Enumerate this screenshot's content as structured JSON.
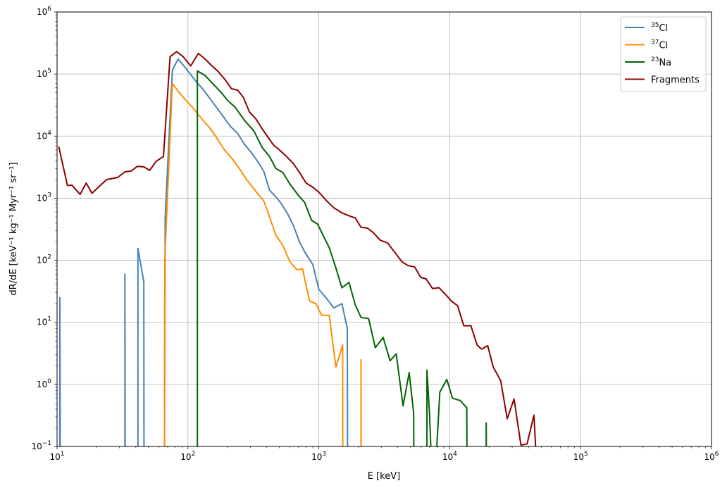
{
  "chart_data": {
    "type": "line",
    "xscale": "log",
    "yscale": "log",
    "xlim": [
      10,
      1000000
    ],
    "ylim": [
      0.1,
      1000000
    ],
    "grid": true,
    "legend_position": "top-right",
    "xlabel": "E [keV]",
    "ylabel": "dR/dE [keV⁻¹ kg⁻¹ Myr⁻¹ sr⁻¹]",
    "x_tick_labels": [
      {
        "base": "10",
        "exp": "1"
      },
      {
        "base": "10",
        "exp": "2"
      },
      {
        "base": "10",
        "exp": "3"
      },
      {
        "base": "10",
        "exp": "4"
      },
      {
        "base": "10",
        "exp": "5"
      },
      {
        "base": "10",
        "exp": "6"
      }
    ],
    "y_tick_labels": [
      {
        "base": "10",
        "exp": "−1"
      },
      {
        "base": "10",
        "exp": "0"
      },
      {
        "base": "10",
        "exp": "1"
      },
      {
        "base": "10",
        "exp": "2"
      },
      {
        "base": "10",
        "exp": "3"
      },
      {
        "base": "10",
        "exp": "4"
      },
      {
        "base": "10",
        "exp": "5"
      },
      {
        "base": "10",
        "exp": "6"
      }
    ],
    "series": [
      {
        "name": "³⁵Cl",
        "legend_sup": "35",
        "legend_base": "Cl",
        "color": "#4682b4",
        "points": [
          [
            10.5,
            0.01
          ],
          [
            10.5,
            25
          ],
          [
            10.6,
            0.01
          ],
          [
            33,
            0.01
          ],
          [
            33,
            60
          ],
          [
            33.2,
            0.01
          ],
          [
            41.5,
            0.01
          ],
          [
            41.5,
            155
          ],
          [
            46,
            45
          ],
          [
            46.2,
            0.01
          ],
          [
            66,
            0.01
          ],
          [
            67,
            500
          ],
          [
            76,
            115000
          ],
          [
            84,
            175000
          ],
          [
            96,
            125000
          ],
          [
            112,
            82000
          ],
          [
            132,
            55000
          ],
          [
            158,
            33000
          ],
          [
            185,
            21000
          ],
          [
            210,
            14500
          ],
          [
            240,
            11000
          ],
          [
            270,
            7400
          ],
          [
            310,
            5200
          ],
          [
            350,
            3600
          ],
          [
            380,
            2700
          ],
          [
            420,
            1350
          ],
          [
            470,
            1050
          ],
          [
            520,
            800
          ],
          [
            580,
            550
          ],
          [
            640,
            360
          ],
          [
            710,
            200
          ],
          [
            790,
            130
          ],
          [
            900,
            85
          ],
          [
            1000,
            34
          ],
          [
            1150,
            24
          ],
          [
            1300,
            17
          ],
          [
            1500,
            20
          ],
          [
            1650,
            8
          ],
          [
            1660,
            0.01
          ]
        ]
      },
      {
        "name": "³⁷Cl",
        "legend_sup": "37",
        "legend_base": "Cl",
        "color": "#ff8c00",
        "points": [
          [
            66,
            0.01
          ],
          [
            66.5,
            100
          ],
          [
            76,
            70000
          ],
          [
            86,
            50000
          ],
          [
            96,
            38000
          ],
          [
            110,
            28000
          ],
          [
            125,
            20000
          ],
          [
            145,
            14000
          ],
          [
            165,
            9500
          ],
          [
            190,
            6000
          ],
          [
            220,
            4200
          ],
          [
            250,
            2900
          ],
          [
            280,
            2000
          ],
          [
            320,
            1400
          ],
          [
            380,
            900
          ],
          [
            420,
            500
          ],
          [
            470,
            250
          ],
          [
            530,
            175
          ],
          [
            600,
            95
          ],
          [
            680,
            70
          ],
          [
            750,
            73
          ],
          [
            850,
            22
          ],
          [
            950,
            20
          ],
          [
            1050,
            13
          ],
          [
            1200,
            13
          ],
          [
            1350,
            1.9
          ],
          [
            1520,
            4.3
          ],
          [
            1525,
            0.01
          ],
          [
            2100,
            0.01
          ],
          [
            2100,
            2.5
          ],
          [
            2105,
            0.01
          ]
        ]
      },
      {
        "name": "²³Na",
        "legend_sup": "23",
        "legend_base": "Na",
        "color": "#006400",
        "points": [
          [
            118,
            0.01
          ],
          [
            118,
            112000
          ],
          [
            135,
            95000
          ],
          [
            155,
            70000
          ],
          [
            180,
            50000
          ],
          [
            200,
            38000
          ],
          [
            230,
            29000
          ],
          [
            270,
            18000
          ],
          [
            320,
            12000
          ],
          [
            370,
            6500
          ],
          [
            420,
            4700
          ],
          [
            470,
            3000
          ],
          [
            530,
            2600
          ],
          [
            600,
            1700
          ],
          [
            700,
            1100
          ],
          [
            780,
            850
          ],
          [
            880,
            440
          ],
          [
            980,
            380
          ],
          [
            1080,
            250
          ],
          [
            1200,
            160
          ],
          [
            1350,
            75
          ],
          [
            1500,
            36
          ],
          [
            1700,
            44
          ],
          [
            1900,
            19
          ],
          [
            2100,
            12
          ],
          [
            2400,
            11.5
          ],
          [
            2700,
            3.9
          ],
          [
            3100,
            5.7
          ],
          [
            3500,
            2.4
          ],
          [
            3900,
            3.1
          ],
          [
            4400,
            0.45
          ],
          [
            4900,
            1.55
          ],
          [
            5300,
            0.35
          ],
          [
            5350,
            0.01
          ],
          [
            6700,
            0.01
          ],
          [
            6700,
            1.7
          ],
          [
            7000,
            0.35
          ],
          [
            7500,
            0.01
          ],
          [
            8400,
            0.75
          ],
          [
            9500,
            1.2
          ],
          [
            10500,
            0.6
          ],
          [
            12000,
            0.55
          ],
          [
            13500,
            0.42
          ],
          [
            13600,
            0.01
          ],
          [
            19000,
            0.01
          ],
          [
            19000,
            0.24
          ],
          [
            19100,
            0.01
          ]
        ]
      },
      {
        "name": "Fragments",
        "legend_sup": "",
        "legend_base": "Fragments",
        "color": "#8b0000",
        "points": [
          [
            10.3,
            6800
          ],
          [
            12,
            1600
          ],
          [
            13,
            1620
          ],
          [
            15,
            1150
          ],
          [
            16.7,
            1750
          ],
          [
            18.5,
            1200
          ],
          [
            21,
            1550
          ],
          [
            24,
            2000
          ],
          [
            29,
            2150
          ],
          [
            33,
            2650
          ],
          [
            37,
            2750
          ],
          [
            41,
            3250
          ],
          [
            46,
            3200
          ],
          [
            51,
            2800
          ],
          [
            57,
            3900
          ],
          [
            65,
            4700
          ],
          [
            73,
            190000
          ],
          [
            82,
            230000
          ],
          [
            92,
            190000
          ],
          [
            105,
            135000
          ],
          [
            120,
            215000
          ],
          [
            135,
            175000
          ],
          [
            150,
            140000
          ],
          [
            170,
            110000
          ],
          [
            195,
            78000
          ],
          [
            215,
            58000
          ],
          [
            240,
            55000
          ],
          [
            265,
            42000
          ],
          [
            295,
            24500
          ],
          [
            330,
            19000
          ],
          [
            370,
            13000
          ],
          [
            410,
            9500
          ],
          [
            450,
            7200
          ],
          [
            500,
            6000
          ],
          [
            560,
            4800
          ],
          [
            640,
            3600
          ],
          [
            720,
            2500
          ],
          [
            800,
            1750
          ],
          [
            900,
            1500
          ],
          [
            1000,
            1250
          ],
          [
            1150,
            900
          ],
          [
            1300,
            700
          ],
          [
            1500,
            580
          ],
          [
            1700,
            520
          ],
          [
            1900,
            480
          ],
          [
            2100,
            340
          ],
          [
            2350,
            330
          ],
          [
            2600,
            280
          ],
          [
            2950,
            210
          ],
          [
            3350,
            190
          ],
          [
            3800,
            135
          ],
          [
            4300,
            95
          ],
          [
            4800,
            82
          ],
          [
            5400,
            78
          ],
          [
            6000,
            53
          ],
          [
            6600,
            50
          ],
          [
            7400,
            35
          ],
          [
            8300,
            36
          ],
          [
            9300,
            28
          ],
          [
            10300,
            22
          ],
          [
            11500,
            18.5
          ],
          [
            12800,
            8.8
          ],
          [
            14500,
            8.8
          ],
          [
            16200,
            4.3
          ],
          [
            17500,
            3.7
          ],
          [
            19500,
            4.2
          ],
          [
            21500,
            1.9
          ],
          [
            24500,
            1.15
          ],
          [
            27500,
            0.28
          ],
          [
            31000,
            0.58
          ],
          [
            35000,
            0.105
          ],
          [
            39000,
            0.11
          ],
          [
            44000,
            0.32
          ],
          [
            48000,
            0.01
          ]
        ]
      }
    ]
  }
}
